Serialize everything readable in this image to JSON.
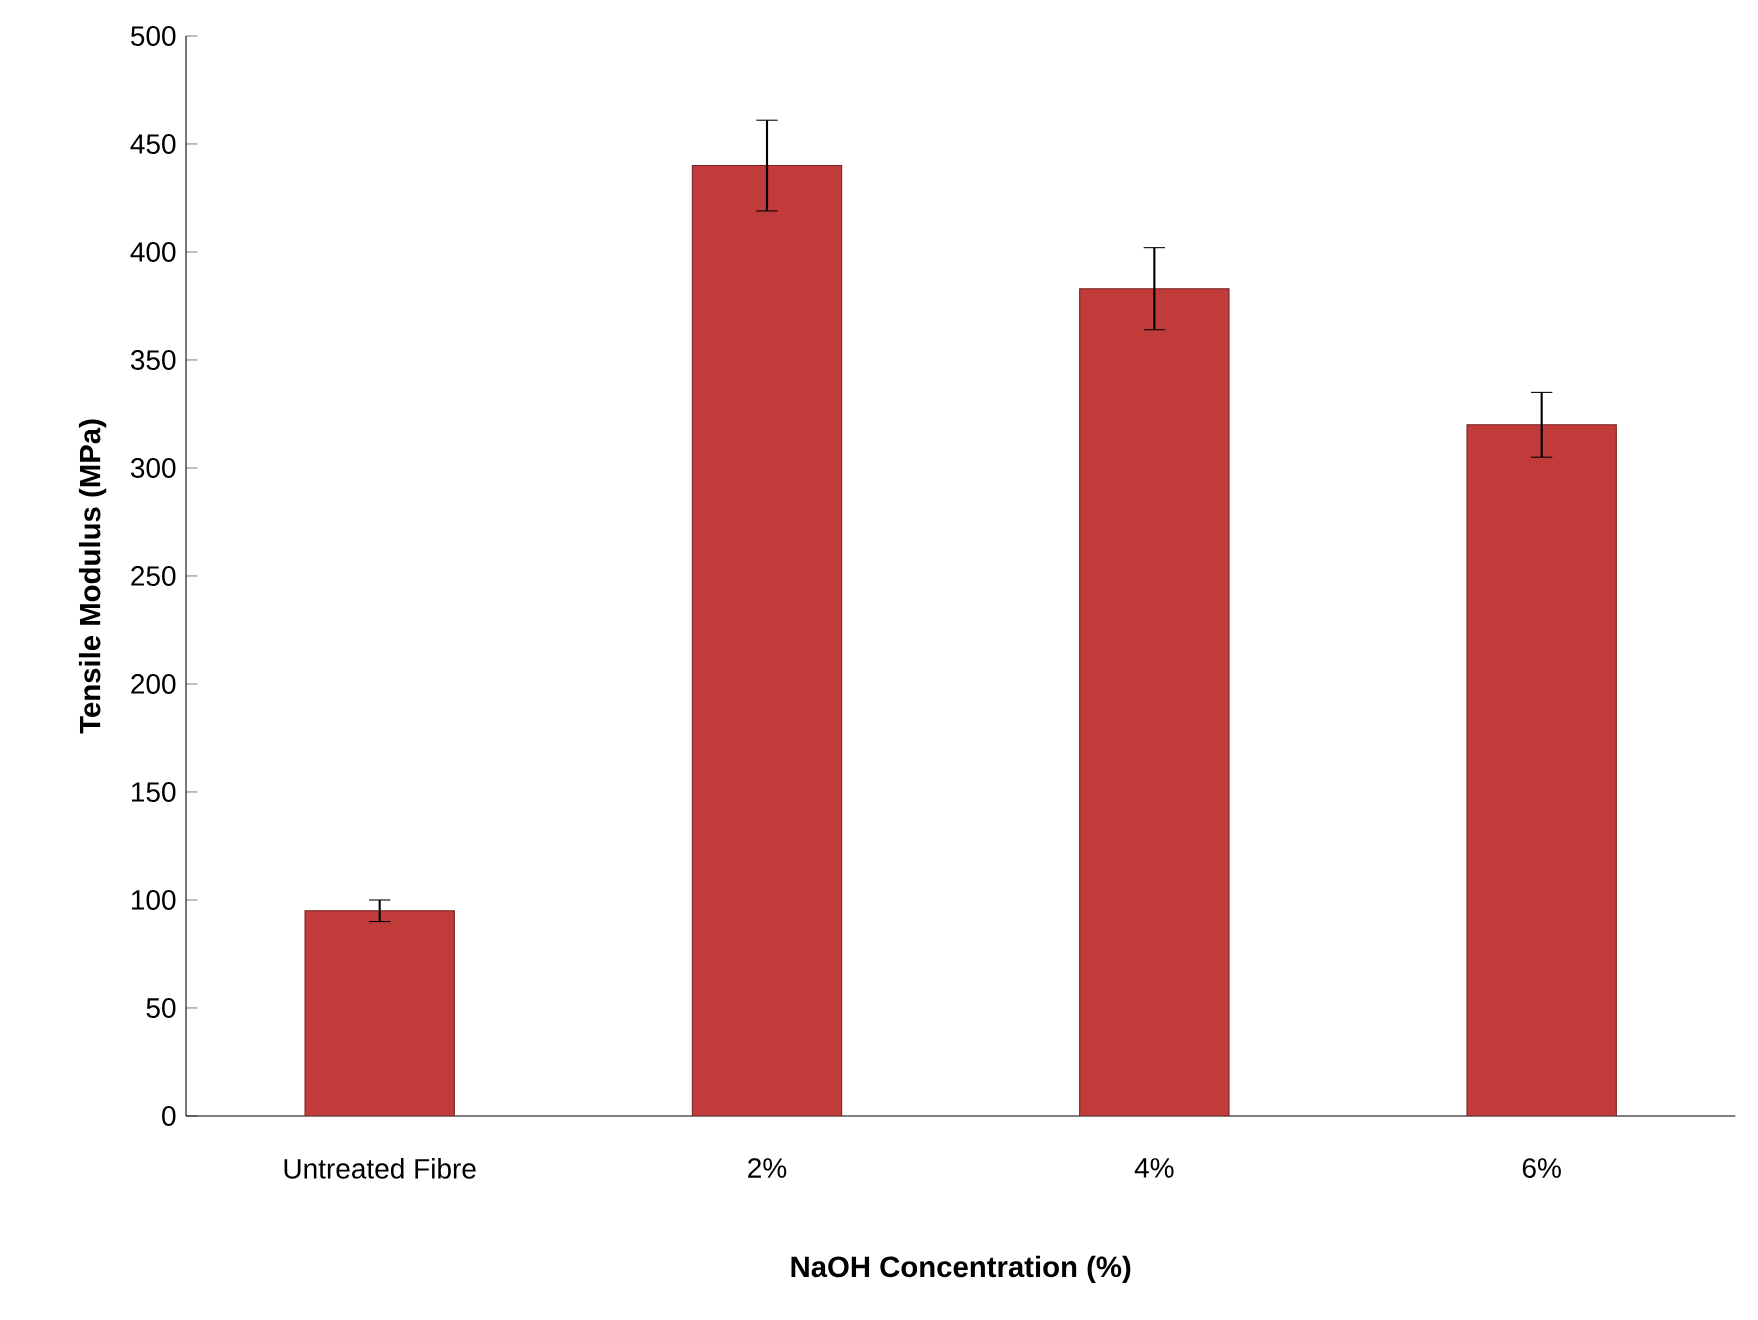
{
  "chart_data": {
    "type": "bar",
    "categories": [
      "Untreated Fibre",
      "2%",
      "4%",
      "6%"
    ],
    "values": [
      95,
      440,
      383,
      320
    ],
    "errors": [
      5,
      21,
      19,
      15
    ],
    "color": "#c23b3b",
    "xlabel": "NaOH Concentration (%)",
    "ylabel": "Tensile Modulus (MPa)",
    "ylim": [
      0,
      500
    ],
    "yticks": [
      0,
      50,
      100,
      150,
      200,
      250,
      300,
      350,
      400,
      450,
      500
    ],
    "grid": false
  }
}
